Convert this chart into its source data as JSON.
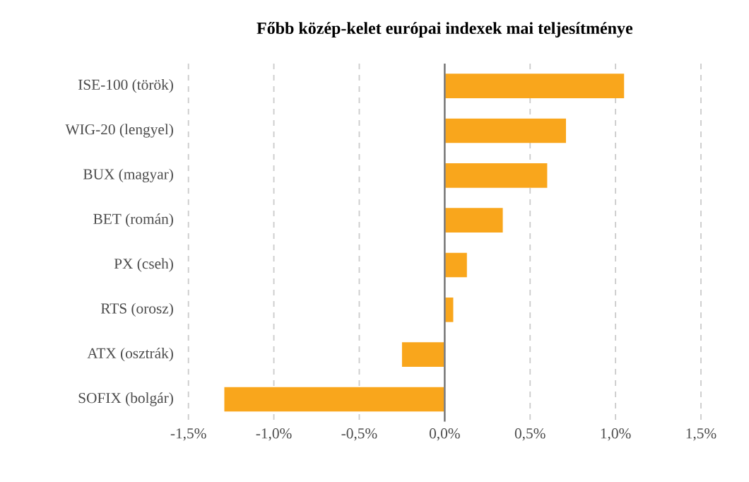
{
  "chart_data": {
    "type": "bar",
    "orientation": "horizontal",
    "title": "Főbb közép-kelet európai indexek mai teljesítménye",
    "categories": [
      "ISE-100 (török)",
      "WIG-20 (lengyel)",
      "BUX (magyar)",
      "BET (román)",
      "PX (cseh)",
      "RTS (orosz)",
      "ATX (osztrák)",
      "SOFIX (bolgár)"
    ],
    "values": [
      1.05,
      0.71,
      0.6,
      0.34,
      0.13,
      0.05,
      -0.25,
      -1.29
    ],
    "color": "#f9a61c",
    "xlim": [
      -1.5,
      1.5
    ],
    "xticks": [
      {
        "value": -1.5,
        "label": "-1,5%"
      },
      {
        "value": -1.0,
        "label": "-1,0%"
      },
      {
        "value": -0.5,
        "label": "-0,5%"
      },
      {
        "value": 0,
        "label": "0,0%"
      },
      {
        "value": 0.5,
        "label": "0,5%"
      },
      {
        "value": 1.0,
        "label": "1,0%"
      },
      {
        "value": 1.5,
        "label": "1,5%"
      }
    ],
    "grid": "x"
  }
}
